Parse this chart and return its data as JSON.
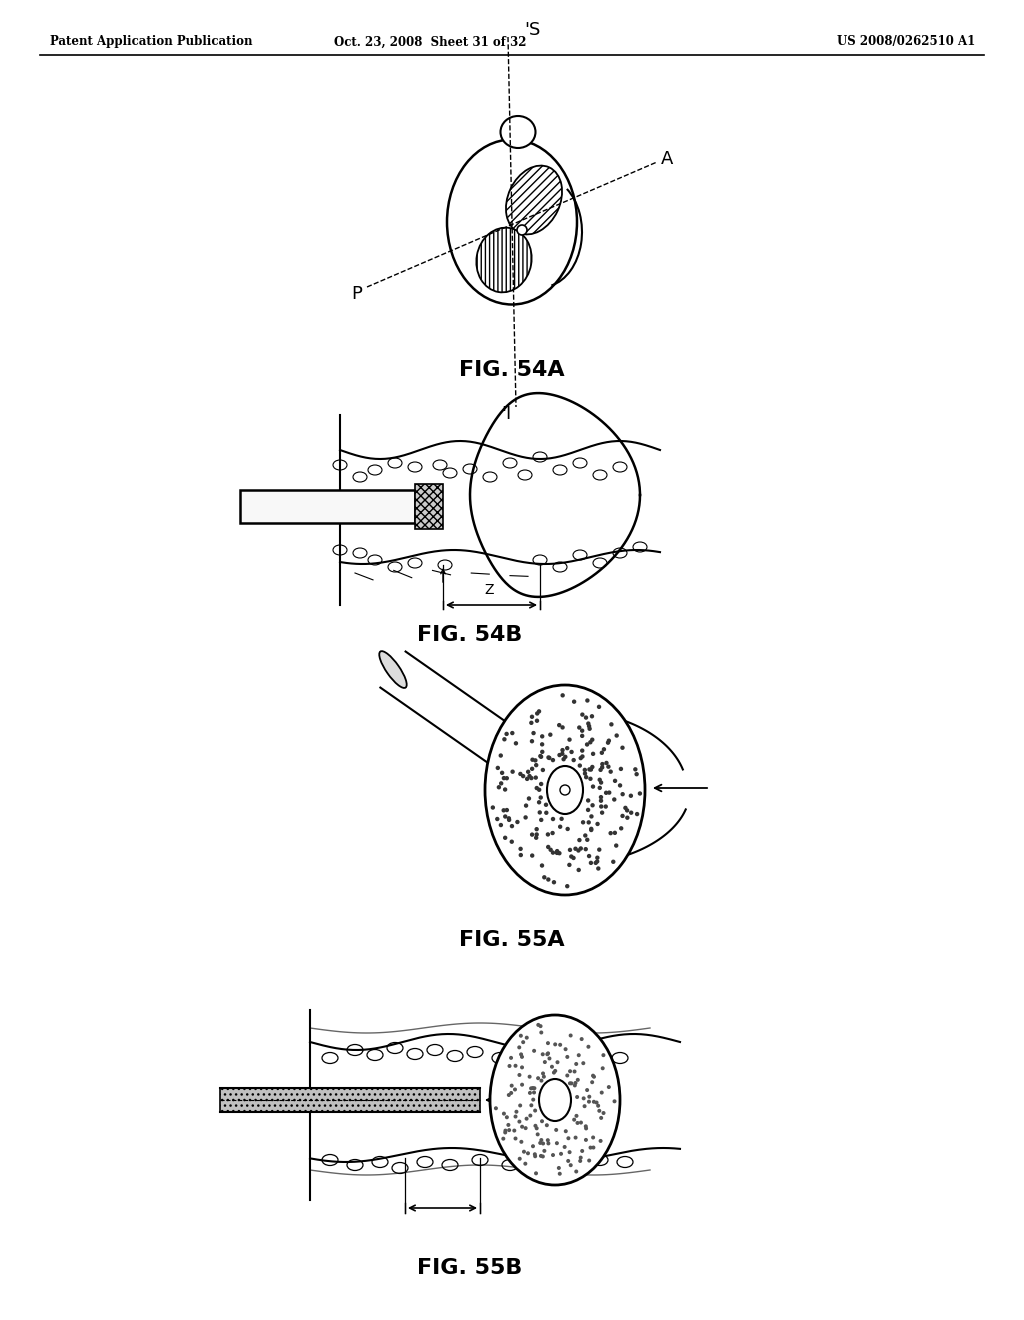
{
  "header_left": "Patent Application Publication",
  "header_center": "Oct. 23, 2008  Sheet 31 of 32",
  "header_right": "US 2008/0262510 A1",
  "fig54a_label": "FIG. 54A",
  "fig54b_label": "FIG. 54B",
  "fig55a_label": "FIG. 55A",
  "fig55b_label": "FIG. 55B",
  "bg_color": "#ffffff",
  "line_color": "#000000"
}
